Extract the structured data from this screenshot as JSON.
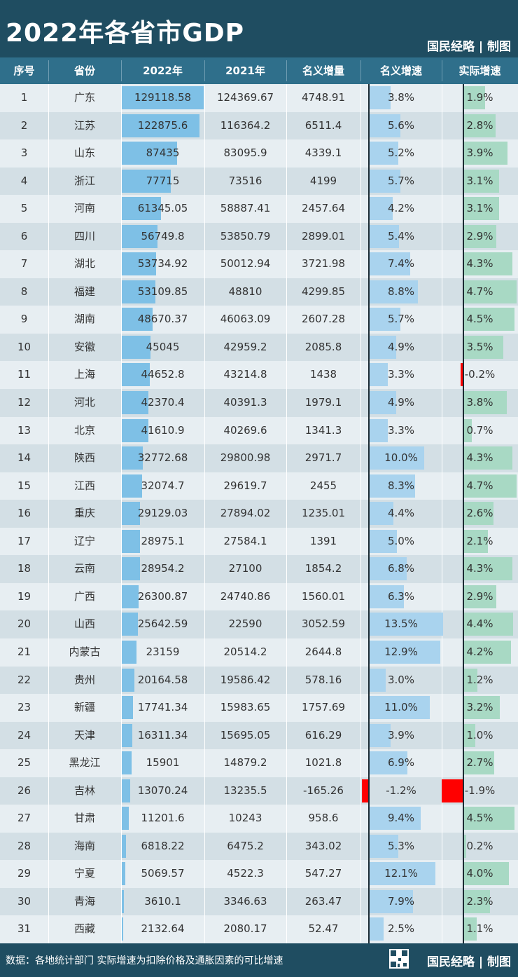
{
  "title": "2022年各省市GDP",
  "brand": "国民经略 | 制图",
  "footer": {
    "source": "数据：各地统计部门 实际增速为扣除价格及通胀因素的可比增速",
    "brand": "国民经略 | 制图"
  },
  "colors": {
    "header": "#1f4d61",
    "table_head": "#2f6f8b",
    "gdp_bar": "#7ec0e6",
    "growth_bar": "#a9d3ee",
    "real_bar": "#a8d9c4",
    "negative_bar": "#ff0000"
  },
  "chart_data": {
    "type": "table",
    "title": "2022年各省市GDP",
    "columns": [
      "序号",
      "省份",
      "2022年",
      "2021年",
      "名义增量",
      "名义增速",
      "实际增速"
    ],
    "rows": [
      {
        "rank": "1",
        "province": "广东",
        "gdp2022": "129118.58",
        "gdp2021": "124369.67",
        "increment": "4748.91",
        "nominal_growth": "3.8%",
        "real_growth": "1.9%"
      },
      {
        "rank": "2",
        "province": "江苏",
        "gdp2022": "122875.6",
        "gdp2021": "116364.2",
        "increment": "6511.4",
        "nominal_growth": "5.6%",
        "real_growth": "2.8%"
      },
      {
        "rank": "3",
        "province": "山东",
        "gdp2022": "87435",
        "gdp2021": "83095.9",
        "increment": "4339.1",
        "nominal_growth": "5.2%",
        "real_growth": "3.9%"
      },
      {
        "rank": "4",
        "province": "浙江",
        "gdp2022": "77715",
        "gdp2021": "73516",
        "increment": "4199",
        "nominal_growth": "5.7%",
        "real_growth": "3.1%"
      },
      {
        "rank": "5",
        "province": "河南",
        "gdp2022": "61345.05",
        "gdp2021": "58887.41",
        "increment": "2457.64",
        "nominal_growth": "4.2%",
        "real_growth": "3.1%"
      },
      {
        "rank": "6",
        "province": "四川",
        "gdp2022": "56749.8",
        "gdp2021": "53850.79",
        "increment": "2899.01",
        "nominal_growth": "5.4%",
        "real_growth": "2.9%"
      },
      {
        "rank": "7",
        "province": "湖北",
        "gdp2022": "53734.92",
        "gdp2021": "50012.94",
        "increment": "3721.98",
        "nominal_growth": "7.4%",
        "real_growth": "4.3%"
      },
      {
        "rank": "8",
        "province": "福建",
        "gdp2022": "53109.85",
        "gdp2021": "48810",
        "increment": "4299.85",
        "nominal_growth": "8.8%",
        "real_growth": "4.7%"
      },
      {
        "rank": "9",
        "province": "湖南",
        "gdp2022": "48670.37",
        "gdp2021": "46063.09",
        "increment": "2607.28",
        "nominal_growth": "5.7%",
        "real_growth": "4.5%"
      },
      {
        "rank": "10",
        "province": "安徽",
        "gdp2022": "45045",
        "gdp2021": "42959.2",
        "increment": "2085.8",
        "nominal_growth": "4.9%",
        "real_growth": "3.5%"
      },
      {
        "rank": "11",
        "province": "上海",
        "gdp2022": "44652.8",
        "gdp2021": "43214.8",
        "increment": "1438",
        "nominal_growth": "3.3%",
        "real_growth": "-0.2%"
      },
      {
        "rank": "12",
        "province": "河北",
        "gdp2022": "42370.4",
        "gdp2021": "40391.3",
        "increment": "1979.1",
        "nominal_growth": "4.9%",
        "real_growth": "3.8%"
      },
      {
        "rank": "13",
        "province": "北京",
        "gdp2022": "41610.9",
        "gdp2021": "40269.6",
        "increment": "1341.3",
        "nominal_growth": "3.3%",
        "real_growth": "0.7%"
      },
      {
        "rank": "14",
        "province": "陕西",
        "gdp2022": "32772.68",
        "gdp2021": "29800.98",
        "increment": "2971.7",
        "nominal_growth": "10.0%",
        "real_growth": "4.3%"
      },
      {
        "rank": "15",
        "province": "江西",
        "gdp2022": "32074.7",
        "gdp2021": "29619.7",
        "increment": "2455",
        "nominal_growth": "8.3%",
        "real_growth": "4.7%"
      },
      {
        "rank": "16",
        "province": "重庆",
        "gdp2022": "29129.03",
        "gdp2021": "27894.02",
        "increment": "1235.01",
        "nominal_growth": "4.4%",
        "real_growth": "2.6%"
      },
      {
        "rank": "17",
        "province": "辽宁",
        "gdp2022": "28975.1",
        "gdp2021": "27584.1",
        "increment": "1391",
        "nominal_growth": "5.0%",
        "real_growth": "2.1%"
      },
      {
        "rank": "18",
        "province": "云南",
        "gdp2022": "28954.2",
        "gdp2021": "27100",
        "increment": "1854.2",
        "nominal_growth": "6.8%",
        "real_growth": "4.3%"
      },
      {
        "rank": "19",
        "province": "广西",
        "gdp2022": "26300.87",
        "gdp2021": "24740.86",
        "increment": "1560.01",
        "nominal_growth": "6.3%",
        "real_growth": "2.9%"
      },
      {
        "rank": "20",
        "province": "山西",
        "gdp2022": "25642.59",
        "gdp2021": "22590",
        "increment": "3052.59",
        "nominal_growth": "13.5%",
        "real_growth": "4.4%"
      },
      {
        "rank": "21",
        "province": "内蒙古",
        "gdp2022": "23159",
        "gdp2021": "20514.2",
        "increment": "2644.8",
        "nominal_growth": "12.9%",
        "real_growth": "4.2%"
      },
      {
        "rank": "22",
        "province": "贵州",
        "gdp2022": "20164.58",
        "gdp2021": "19586.42",
        "increment": "578.16",
        "nominal_growth": "3.0%",
        "real_growth": "1.2%"
      },
      {
        "rank": "23",
        "province": "新疆",
        "gdp2022": "17741.34",
        "gdp2021": "15983.65",
        "increment": "1757.69",
        "nominal_growth": "11.0%",
        "real_growth": "3.2%"
      },
      {
        "rank": "24",
        "province": "天津",
        "gdp2022": "16311.34",
        "gdp2021": "15695.05",
        "increment": "616.29",
        "nominal_growth": "3.9%",
        "real_growth": "1.0%"
      },
      {
        "rank": "25",
        "province": "黑龙江",
        "gdp2022": "15901",
        "gdp2021": "14879.2",
        "increment": "1021.8",
        "nominal_growth": "6.9%",
        "real_growth": "2.7%"
      },
      {
        "rank": "26",
        "province": "吉林",
        "gdp2022": "13070.24",
        "gdp2021": "13235.5",
        "increment": "-165.26",
        "nominal_growth": "-1.2%",
        "real_growth": "-1.9%"
      },
      {
        "rank": "27",
        "province": "甘肃",
        "gdp2022": "11201.6",
        "gdp2021": "10243",
        "increment": "958.6",
        "nominal_growth": "9.4%",
        "real_growth": "4.5%"
      },
      {
        "rank": "28",
        "province": "海南",
        "gdp2022": "6818.22",
        "gdp2021": "6475.2",
        "increment": "343.02",
        "nominal_growth": "5.3%",
        "real_growth": "0.2%"
      },
      {
        "rank": "29",
        "province": "宁夏",
        "gdp2022": "5069.57",
        "gdp2021": "4522.3",
        "increment": "547.27",
        "nominal_growth": "12.1%",
        "real_growth": "4.0%"
      },
      {
        "rank": "30",
        "province": "青海",
        "gdp2022": "3610.1",
        "gdp2021": "3346.63",
        "increment": "263.47",
        "nominal_growth": "7.9%",
        "real_growth": "2.3%"
      },
      {
        "rank": "31",
        "province": "西藏",
        "gdp2022": "2132.64",
        "gdp2021": "2080.17",
        "increment": "52.47",
        "nominal_growth": "2.5%",
        "real_growth": "1.1%"
      }
    ]
  }
}
